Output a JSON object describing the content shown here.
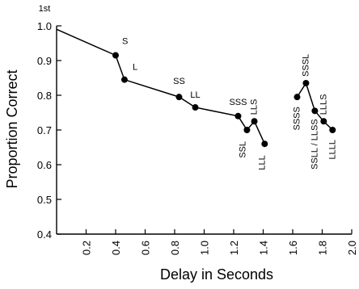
{
  "chart_data": {
    "type": "line",
    "title": "",
    "xlabel": "Delay in Seconds",
    "ylabel": "Proportion Correct",
    "corner_label": "1st",
    "xlim": [
      0,
      2.0
    ],
    "ylim": [
      0.4,
      1.0
    ],
    "x_ticks": [
      "0.2",
      "0.4",
      "0.6",
      "0.8",
      "1.0",
      "1.2",
      "1.4",
      "1.6",
      "1.8",
      "2.0"
    ],
    "y_ticks": [
      "0.4",
      "0.5",
      "0.6",
      "0.7",
      "0.8",
      "0.9",
      "1.0"
    ],
    "grid": false,
    "legend": "none",
    "series": [
      {
        "points": [
          {
            "x": 0.0,
            "y": 0.99,
            "label": ""
          },
          {
            "x": 0.4,
            "y": 0.915,
            "label": "S"
          },
          {
            "x": 0.46,
            "y": 0.845,
            "label": "L"
          },
          {
            "x": 0.83,
            "y": 0.795,
            "label": "SS"
          },
          {
            "x": 0.94,
            "y": 0.765,
            "label": "LL"
          },
          {
            "x": 1.23,
            "y": 0.74,
            "label": "SSS"
          },
          {
            "x": 1.29,
            "y": 0.7,
            "label": "SSL"
          },
          {
            "x": 1.34,
            "y": 0.725,
            "label": "LLS"
          },
          {
            "x": 1.41,
            "y": 0.66,
            "label": "LLL"
          }
        ]
      },
      {
        "points": [
          {
            "x": 1.63,
            "y": 0.795,
            "label": "SSSS"
          },
          {
            "x": 1.69,
            "y": 0.835,
            "label": "SSSL"
          },
          {
            "x": 1.75,
            "y": 0.755,
            "label": "SSLL / LLSS"
          },
          {
            "x": 1.81,
            "y": 0.725,
            "label": "LLLS"
          },
          {
            "x": 1.87,
            "y": 0.7,
            "label": "LLLL"
          }
        ]
      }
    ]
  }
}
